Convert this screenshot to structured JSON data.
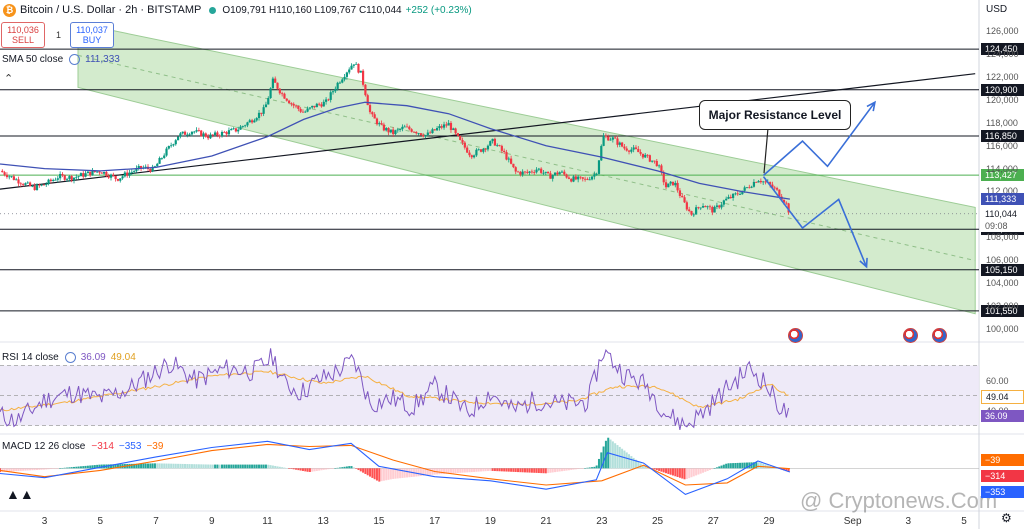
{
  "header": {
    "logo_glyph": "₿",
    "title": "Bitcoin / U.S. Dollar · 2h · BITSTAMP",
    "ohlc": "O109,791 H110,160 L109,767 C110,044",
    "change": "+252 (+0.23%)"
  },
  "trade": {
    "sell_price": "110,036",
    "sell_label": "SELL",
    "qty": "1",
    "buy_price": "110,037",
    "buy_label": "BUY"
  },
  "indicators": {
    "sma_label": "SMA 50 close",
    "sma_value": "111,333",
    "rsi_label": "RSI 14 close",
    "rsi_value": "36.09",
    "rsi_ma_value": "49.04",
    "macd_label": "MACD 12 26 close",
    "macd_hist": "−314",
    "macd_line": "−353",
    "macd_signal": "−39"
  },
  "annotation": {
    "callout": "Major Resistance Level"
  },
  "watermark": "@ Cryptonews.Com",
  "colors": {
    "up": "#089981",
    "down": "#f23645",
    "sma": "#3f51b5",
    "channel": "#c8e6c0",
    "proj": "#3a6fd8",
    "rsi": "#7e57c2",
    "rsi_ma": "#f5b041",
    "macd": "#2962ff",
    "signal": "#ff6d00"
  },
  "chart_data": [
    {
      "type": "candlestick",
      "title": "Bitcoin / U.S. Dollar · 2h · BITSTAMP",
      "currency": "USD",
      "ylim": [
        99000,
        127000
      ],
      "yticks": [
        100000,
        102000,
        104000,
        106000,
        108000,
        110000,
        112000,
        114000,
        116000,
        118000,
        120000,
        122000,
        124000,
        126000
      ],
      "ytick_labels": [
        "100,000",
        "102,000",
        "104,000",
        "106,000",
        "108,000",
        "110,000",
        "112,000",
        "114,000",
        "116,000",
        "118,000",
        "120,000",
        "122,000",
        "124,000",
        "126,000"
      ],
      "x_tick_labels": [
        "3",
        "5",
        "7",
        "9",
        "11",
        "13",
        "15",
        "17",
        "19",
        "21",
        "23",
        "25",
        "27",
        "29",
        "Sep",
        "3",
        "5"
      ],
      "x_tick_days": [
        3,
        5,
        7,
        9,
        11,
        13,
        15,
        17,
        19,
        21,
        23,
        25,
        27,
        29,
        32,
        34,
        36
      ],
      "xlim_days": [
        1.4,
        36.5
      ],
      "horizontal_levels": [
        {
          "value": 124450,
          "label": "124,450"
        },
        {
          "value": 120900,
          "label": "120,900"
        },
        {
          "value": 116850,
          "label": "116,850"
        },
        {
          "value": 113427,
          "label": "113,427",
          "color": "#4caf50"
        },
        {
          "value": 108695,
          "label": "108,695"
        },
        {
          "value": 105150,
          "label": "105,150"
        },
        {
          "value": 101550,
          "label": "101,550"
        }
      ],
      "price_tags": [
        {
          "value": 111333,
          "label": "111,333",
          "bg": "#3f51b5",
          "fg": "#ffffff"
        },
        {
          "value": 110044,
          "label": "110,044",
          "sub": "09:08",
          "bg": "#ffffff",
          "fg": "#131722"
        }
      ],
      "close_path": [
        [
          1.4,
          113800
        ],
        [
          2.0,
          113000
        ],
        [
          2.6,
          112300
        ],
        [
          3.0,
          112600
        ],
        [
          3.5,
          113300
        ],
        [
          4.0,
          113200
        ],
        [
          4.6,
          113600
        ],
        [
          5.0,
          113800
        ],
        [
          5.6,
          113100
        ],
        [
          6.0,
          113600
        ],
        [
          6.5,
          114100
        ],
        [
          6.9,
          113900
        ],
        [
          7.3,
          115300
        ],
        [
          7.8,
          116900
        ],
        [
          8.3,
          117300
        ],
        [
          8.9,
          116800
        ],
        [
          9.4,
          117100
        ],
        [
          9.9,
          117400
        ],
        [
          10.4,
          118200
        ],
        [
          10.9,
          119200
        ],
        [
          11.2,
          121700
        ],
        [
          11.5,
          120600
        ],
        [
          11.9,
          119600
        ],
        [
          12.3,
          118900
        ],
        [
          12.7,
          119500
        ],
        [
          13.1,
          119800
        ],
        [
          13.5,
          121400
        ],
        [
          13.9,
          122700
        ],
        [
          14.1,
          123300
        ],
        [
          14.35,
          122300
        ],
        [
          14.7,
          118700
        ],
        [
          15.1,
          117600
        ],
        [
          15.5,
          117100
        ],
        [
          15.9,
          117600
        ],
        [
          16.3,
          117300
        ],
        [
          16.7,
          116900
        ],
        [
          17.1,
          117500
        ],
        [
          17.5,
          117900
        ],
        [
          17.9,
          116400
        ],
        [
          18.3,
          115200
        ],
        [
          18.7,
          115700
        ],
        [
          19.1,
          116400
        ],
        [
          19.5,
          115300
        ],
        [
          19.9,
          113700
        ],
        [
          20.3,
          113600
        ],
        [
          20.7,
          114000
        ],
        [
          21.1,
          113300
        ],
        [
          21.5,
          113700
        ],
        [
          21.9,
          113100
        ],
        [
          22.4,
          113000
        ],
        [
          22.8,
          113600
        ],
        [
          23.05,
          116800
        ],
        [
          23.4,
          116600
        ],
        [
          23.8,
          115800
        ],
        [
          24.2,
          115600
        ],
        [
          24.6,
          115000
        ],
        [
          25.0,
          114400
        ],
        [
          25.3,
          112400
        ],
        [
          25.6,
          112800
        ],
        [
          25.9,
          111200
        ],
        [
          26.2,
          110000
        ],
        [
          26.6,
          110900
        ],
        [
          27.0,
          110300
        ],
        [
          27.4,
          111200
        ],
        [
          27.8,
          111700
        ],
        [
          28.2,
          112300
        ],
        [
          28.6,
          113100
        ],
        [
          29.0,
          112600
        ],
        [
          29.3,
          112000
        ],
        [
          29.6,
          111000
        ],
        [
          29.75,
          110044
        ]
      ],
      "sma50": [
        [
          1.4,
          114400
        ],
        [
          3,
          114000
        ],
        [
          5,
          113800
        ],
        [
          7,
          114100
        ],
        [
          9,
          115100
        ],
        [
          11,
          116800
        ],
        [
          12.3,
          118300
        ],
        [
          13.5,
          119300
        ],
        [
          14.5,
          119800
        ],
        [
          16,
          119500
        ],
        [
          17.5,
          118800
        ],
        [
          19,
          117500
        ],
        [
          21,
          116000
        ],
        [
          23,
          115000
        ],
        [
          25,
          113800
        ],
        [
          26.5,
          112700
        ],
        [
          28,
          112000
        ],
        [
          29.75,
          111333
        ]
      ],
      "channel": {
        "upper": [
          [
            4.2,
            126700
          ],
          [
            36.4,
            110600
          ]
        ],
        "lower": [
          [
            4.2,
            121100
          ],
          [
            36.4,
            101300
          ]
        ],
        "fill": "#c8e6c0"
      },
      "trendline_rising": [
        [
          1.4,
          112200
        ],
        [
          36.4,
          122300
        ]
      ],
      "projections": [
        {
          "name": "bullish",
          "points": [
            [
              28.8,
              113400
            ],
            [
              30.2,
              116400
            ],
            [
              31.1,
              114200
            ],
            [
              32.8,
              119800
            ]
          ]
        },
        {
          "name": "bearish",
          "points": [
            [
              28.8,
              113300
            ],
            [
              30.2,
              108800
            ],
            [
              31.5,
              111300
            ],
            [
              32.5,
              105400
            ]
          ]
        }
      ]
    },
    {
      "type": "line",
      "title": "RSI 14 close",
      "ylim": [
        25,
        85
      ],
      "band": [
        30,
        70
      ],
      "yticks": [
        60,
        40
      ],
      "ytick_labels": [
        "60.00",
        "40.00"
      ],
      "series": [
        {
          "name": "RSI 14",
          "values": [
            [
              1.4,
              37
            ],
            [
              2,
              33
            ],
            [
              3,
              47
            ],
            [
              4,
              52
            ],
            [
              5,
              48
            ],
            [
              6,
              54
            ],
            [
              7,
              66
            ],
            [
              7.5,
              72
            ],
            [
              8.4,
              60
            ],
            [
              9.5,
              68
            ],
            [
              10.5,
              66
            ],
            [
              11.2,
              76
            ],
            [
              11.6,
              58
            ],
            [
              12.2,
              52
            ],
            [
              12.8,
              60
            ],
            [
              13.5,
              66
            ],
            [
              14.1,
              74
            ],
            [
              14.7,
              44
            ],
            [
              15.5,
              48
            ],
            [
              16.2,
              42
            ],
            [
              17,
              56
            ],
            [
              17.6,
              48
            ],
            [
              18.2,
              38
            ],
            [
              19,
              52
            ],
            [
              19.8,
              40
            ],
            [
              20.6,
              47
            ],
            [
              21.5,
              44
            ],
            [
              22.5,
              46
            ],
            [
              23.05,
              80
            ],
            [
              23.8,
              64
            ],
            [
              24.6,
              57
            ],
            [
              25.3,
              38
            ],
            [
              26,
              30
            ],
            [
              26.7,
              40
            ],
            [
              27.5,
              55
            ],
            [
              28.3,
              68
            ],
            [
              28.8,
              60
            ],
            [
              29.4,
              42
            ],
            [
              29.75,
              36.09
            ]
          ]
        },
        {
          "name": "RSI MA",
          "values": [
            [
              1.4,
              40
            ],
            [
              4,
              46
            ],
            [
              7,
              56
            ],
            [
              9,
              63
            ],
            [
              11,
              66
            ],
            [
              13,
              58
            ],
            [
              14.5,
              63
            ],
            [
              16,
              50
            ],
            [
              18,
              46
            ],
            [
              20,
              44
            ],
            [
              22,
              46
            ],
            [
              23.5,
              56
            ],
            [
              25,
              56
            ],
            [
              26.5,
              42
            ],
            [
              28,
              48
            ],
            [
              29,
              58
            ],
            [
              29.75,
              49.04
            ]
          ]
        }
      ]
    },
    {
      "type": "histogram+line",
      "title": "MACD 12 26 close",
      "ylim": [
        -4000,
        3200
      ],
      "zero_line": true,
      "values": {
        "histogram": -314,
        "macd": -353,
        "signal": -39
      },
      "series": [
        {
          "name": "MACD",
          "values": [
            [
              1.4,
              -500
            ],
            [
              3,
              -900
            ],
            [
              5,
              100
            ],
            [
              7,
              1100
            ],
            [
              9,
              2000
            ],
            [
              11,
              2600
            ],
            [
              12.5,
              1800
            ],
            [
              14,
              2400
            ],
            [
              15,
              200
            ],
            [
              17,
              -800
            ],
            [
              19,
              -1200
            ],
            [
              21,
              -2000
            ],
            [
              22.8,
              -1100
            ],
            [
              23.2,
              1500
            ],
            [
              24.5,
              500
            ],
            [
              26,
              -2500
            ],
            [
              27.5,
              -1000
            ],
            [
              28.6,
              700
            ],
            [
              29.75,
              -353
            ]
          ]
        },
        {
          "name": "Signal",
          "values": [
            [
              1.4,
              -200
            ],
            [
              3,
              -800
            ],
            [
              5,
              -200
            ],
            [
              7,
              700
            ],
            [
              9,
              1700
            ],
            [
              11,
              2300
            ],
            [
              12.5,
              2100
            ],
            [
              14,
              2200
            ],
            [
              15.5,
              800
            ],
            [
              17,
              -300
            ],
            [
              19,
              -1000
            ],
            [
              21,
              -1600
            ],
            [
              23,
              -1200
            ],
            [
              24.5,
              300
            ],
            [
              26,
              -1600
            ],
            [
              27.5,
              -1400
            ],
            [
              28.6,
              200
            ],
            [
              29.75,
              -39
            ]
          ]
        }
      ]
    }
  ]
}
